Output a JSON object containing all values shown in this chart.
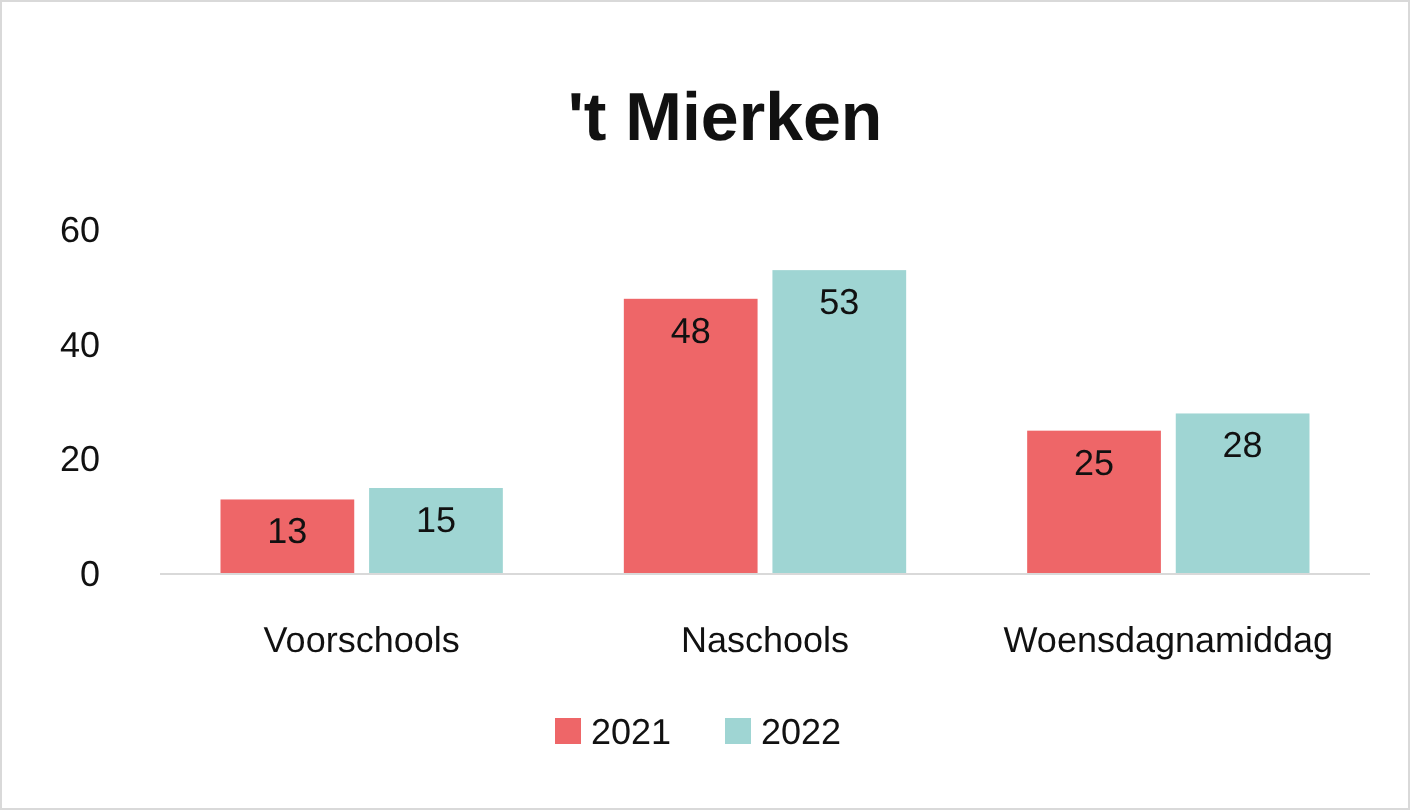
{
  "chart_data": {
    "type": "bar",
    "title": "'t Mierken",
    "categories": [
      "Voorschools",
      "Naschools",
      "Woensdagnamiddag"
    ],
    "series": [
      {
        "name": "2021",
        "color": "#ee6668",
        "values": [
          13,
          48,
          25
        ]
      },
      {
        "name": "2022",
        "color": "#9fd5d3",
        "values": [
          15,
          53,
          28
        ]
      }
    ],
    "ylim": [
      0,
      60
    ],
    "yticks": [
      0,
      20,
      40,
      60
    ],
    "grid": false,
    "legend": "bottom",
    "data_labels": true
  }
}
